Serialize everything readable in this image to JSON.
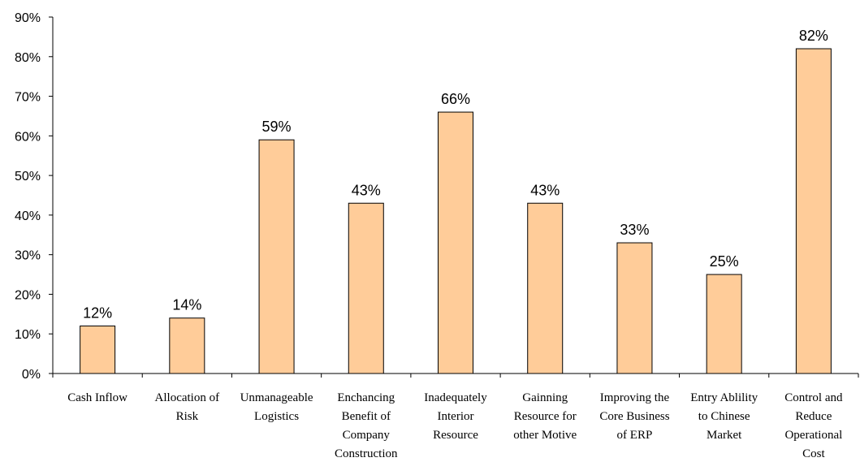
{
  "chart_data": {
    "type": "bar",
    "categories": [
      "Cash Inflow",
      "Allocation of Risk",
      "Unmanageable Logistics",
      "Enchancing Benefit of Company Construction",
      "Inadequately Interior Resource",
      "Gainning Resource for other Motive",
      "Improving the Core Business of ERP",
      "Entry Ablility to Chinese Market",
      "Control and Reduce Operational Cost"
    ],
    "category_label_lines": [
      [
        "Cash Inflow"
      ],
      [
        "Allocation of",
        "Risk"
      ],
      [
        "Unmanageable",
        "Logistics"
      ],
      [
        "Enchancing",
        "Benefit of",
        "Company",
        "Construction"
      ],
      [
        "Inadequately",
        "Interior",
        "Resource"
      ],
      [
        "Gainning",
        "Resource for",
        "other Motive"
      ],
      [
        "Improving the",
        "Core Business",
        "of ERP"
      ],
      [
        "Entry Ablility",
        "to Chinese",
        "Market"
      ],
      [
        "Control and",
        "Reduce",
        "Operational",
        "Cost"
      ]
    ],
    "values": [
      12,
      14,
      59,
      43,
      66,
      43,
      33,
      25,
      82
    ],
    "data_labels": [
      "12%",
      "14%",
      "59%",
      "43%",
      "66%",
      "43%",
      "33%",
      "25%",
      "82%"
    ],
    "yticks": [
      0,
      10,
      20,
      30,
      40,
      50,
      60,
      70,
      80,
      90
    ],
    "ytick_labels": [
      "0%",
      "10%",
      "20%",
      "30%",
      "40%",
      "50%",
      "60%",
      "70%",
      "80%",
      "90%"
    ],
    "ylim": [
      0,
      90
    ],
    "title": "",
    "xlabel": "",
    "ylabel": "",
    "grid": false,
    "legend": "none",
    "bar_color": "#FFCC99",
    "bar_edge_color": "#000000"
  }
}
